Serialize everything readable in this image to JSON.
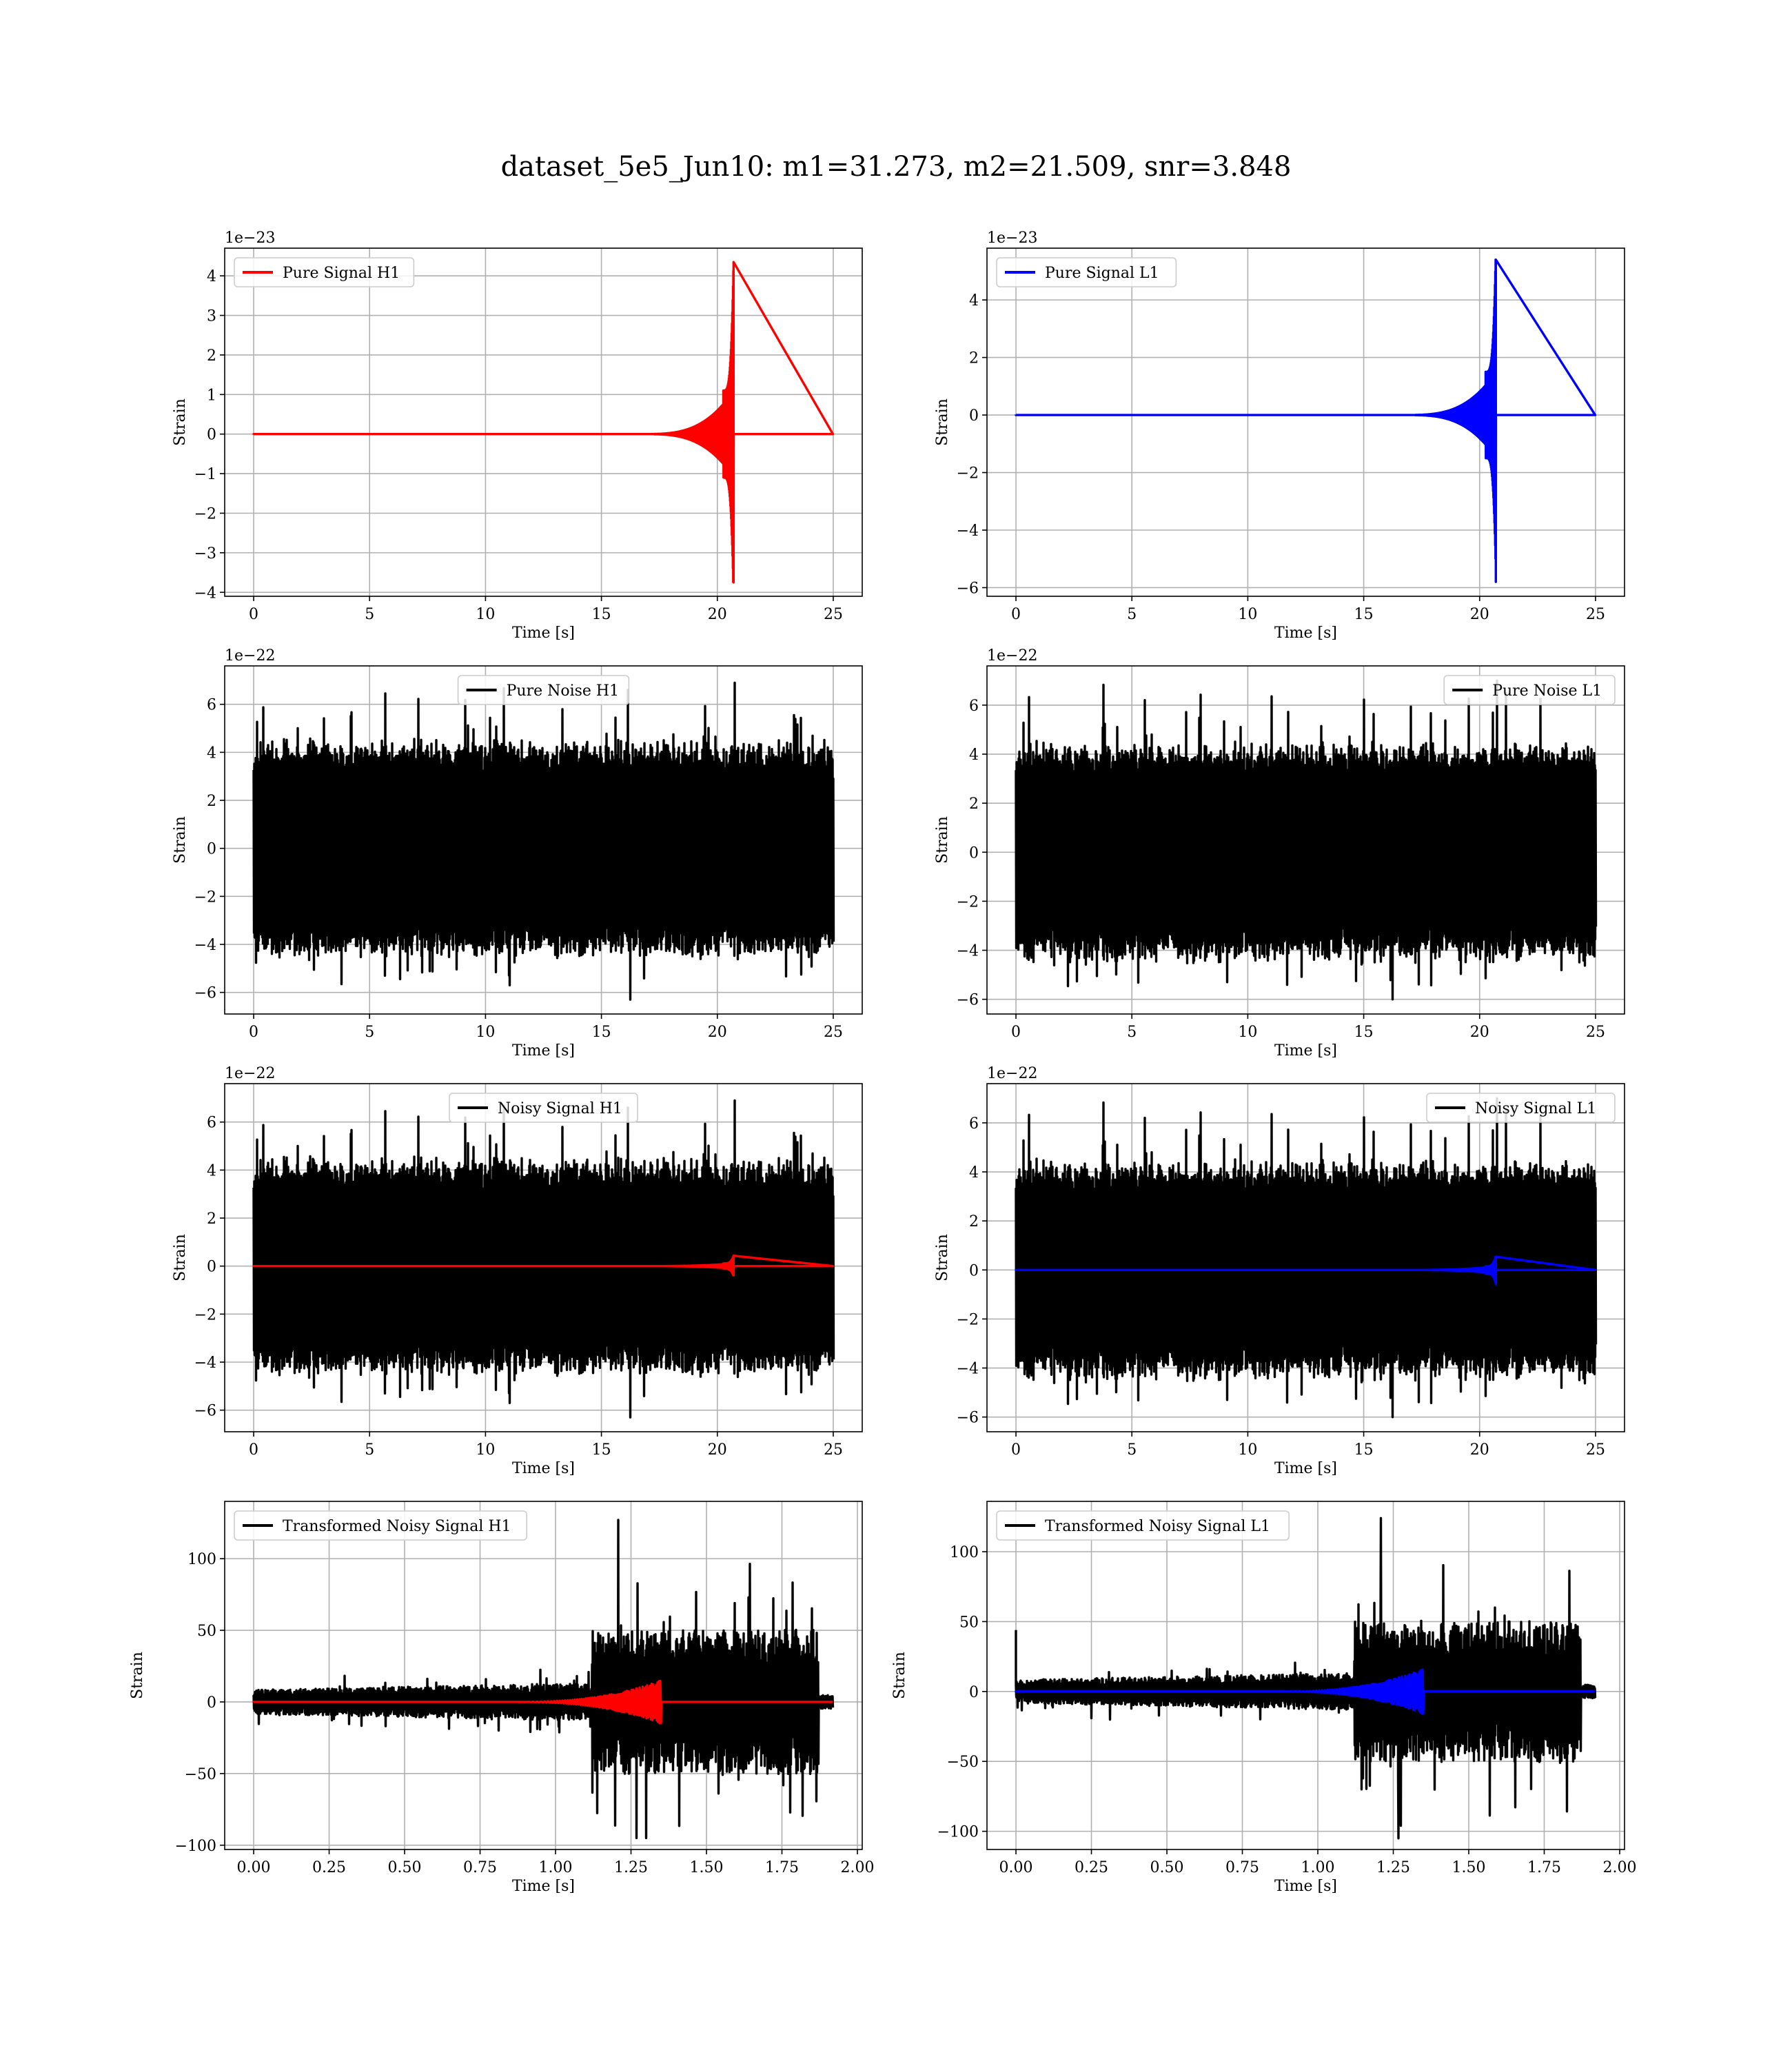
{
  "figure": {
    "title": "dataset_5e5_Jun10: m1=31.273, m2=21.509, snr=3.848"
  },
  "colors": {
    "h1_signal": "#ff0000",
    "l1_signal": "#0000ff",
    "noise": "#000000",
    "grid": "#b0b0b0"
  },
  "chart_data": [
    {
      "id": "pure-signal-h1",
      "type": "line",
      "xlabel": "Time [s]",
      "ylabel": "Strain",
      "offset_text": "1e−23",
      "xlim": [
        -1.25,
        26.25
      ],
      "ylim": [
        -4.1,
        4.7
      ],
      "xticks": [
        0,
        5,
        10,
        15,
        20,
        25
      ],
      "xtick_labels": [
        "0",
        "5",
        "10",
        "15",
        "20",
        "25"
      ],
      "yticks": [
        -4,
        -3,
        -2,
        -1,
        0,
        1,
        2,
        3,
        4
      ],
      "ytick_labels": [
        "−4",
        "−3",
        "−2",
        "−1",
        "0",
        "1",
        "2",
        "3",
        "4"
      ],
      "grid": true,
      "legend_position": "upper left",
      "series": [
        {
          "name": "Pure Signal H1",
          "color": "#ff0000",
          "kind": "chirp",
          "t_start": 0,
          "t_end": 25,
          "t_merger": 20.7,
          "peak_pos": 4.35,
          "peak_neg": -3.75,
          "inspiral_amp": 1.1
        }
      ]
    },
    {
      "id": "pure-signal-l1",
      "type": "line",
      "xlabel": "Time [s]",
      "ylabel": "Strain",
      "offset_text": "1e−23",
      "xlim": [
        -1.25,
        26.25
      ],
      "ylim": [
        -6.3,
        5.8
      ],
      "xticks": [
        0,
        5,
        10,
        15,
        20,
        25
      ],
      "xtick_labels": [
        "0",
        "5",
        "10",
        "15",
        "20",
        "25"
      ],
      "yticks": [
        -6,
        -4,
        -2,
        0,
        2,
        4
      ],
      "ytick_labels": [
        "−6",
        "−4",
        "−2",
        "0",
        "2",
        "4"
      ],
      "grid": true,
      "legend_position": "upper left",
      "series": [
        {
          "name": "Pure Signal L1",
          "color": "#0000ff",
          "kind": "chirp",
          "t_start": 0,
          "t_end": 25,
          "t_merger": 20.7,
          "peak_pos": 5.4,
          "peak_neg": -5.8,
          "inspiral_amp": 1.5
        }
      ]
    },
    {
      "id": "pure-noise-h1",
      "type": "line",
      "xlabel": "Time [s]",
      "ylabel": "Strain",
      "offset_text": "1e−22",
      "xlim": [
        -1.25,
        26.25
      ],
      "ylim": [
        -6.9,
        7.6
      ],
      "xticks": [
        0,
        5,
        10,
        15,
        20,
        25
      ],
      "xtick_labels": [
        "0",
        "5",
        "10",
        "15",
        "20",
        "25"
      ],
      "yticks": [
        -6,
        -4,
        -2,
        0,
        2,
        4,
        6
      ],
      "ytick_labels": [
        "−6",
        "−4",
        "−2",
        "0",
        "2",
        "4",
        "6"
      ],
      "grid": true,
      "legend_position": "upper center",
      "series": [
        {
          "name": "Pure Noise H1",
          "color": "#000000",
          "kind": "noise",
          "t_start": 0,
          "t_end": 25,
          "base_amp": 2.8,
          "max_pos": 6.9,
          "max_neg": -6.3,
          "seed": 11
        }
      ]
    },
    {
      "id": "pure-noise-l1",
      "type": "line",
      "xlabel": "Time [s]",
      "ylabel": "Strain",
      "offset_text": "1e−22",
      "xlim": [
        -1.25,
        26.25
      ],
      "ylim": [
        -6.6,
        7.6
      ],
      "xticks": [
        0,
        5,
        10,
        15,
        20,
        25
      ],
      "xtick_labels": [
        "0",
        "5",
        "10",
        "15",
        "20",
        "25"
      ],
      "yticks": [
        -6,
        -4,
        -2,
        0,
        2,
        4,
        6
      ],
      "ytick_labels": [
        "−6",
        "−4",
        "−2",
        "0",
        "2",
        "4",
        "6"
      ],
      "grid": true,
      "legend_position": "upper right",
      "series": [
        {
          "name": "Pure Noise L1",
          "color": "#000000",
          "kind": "noise",
          "t_start": 0,
          "t_end": 25,
          "base_amp": 2.8,
          "max_pos": 7.0,
          "max_neg": -6.0,
          "seed": 23
        }
      ]
    },
    {
      "id": "noisy-signal-h1",
      "type": "line",
      "xlabel": "Time [s]",
      "ylabel": "Strain",
      "offset_text": "1e−22",
      "xlim": [
        -1.25,
        26.25
      ],
      "ylim": [
        -6.9,
        7.6
      ],
      "xticks": [
        0,
        5,
        10,
        15,
        20,
        25
      ],
      "xtick_labels": [
        "0",
        "5",
        "10",
        "15",
        "20",
        "25"
      ],
      "yticks": [
        -6,
        -4,
        -2,
        0,
        2,
        4,
        6
      ],
      "ytick_labels": [
        "−6",
        "−4",
        "−2",
        "0",
        "2",
        "4",
        "6"
      ],
      "grid": true,
      "legend_position": "upper center",
      "series": [
        {
          "name": "Noisy Signal H1",
          "color": "#000000",
          "kind": "noise",
          "t_start": 0,
          "t_end": 25,
          "base_amp": 2.8,
          "max_pos": 6.9,
          "max_neg": -6.3,
          "seed": 11
        },
        {
          "name": "",
          "color": "#ff0000",
          "kind": "chirp",
          "t_start": 0,
          "t_end": 25,
          "t_merger": 20.7,
          "peak_pos": 0.43,
          "peak_neg": -0.38,
          "inspiral_amp": 0.11
        }
      ]
    },
    {
      "id": "noisy-signal-l1",
      "type": "line",
      "xlabel": "Time [s]",
      "ylabel": "Strain",
      "offset_text": "1e−22",
      "xlim": [
        -1.25,
        26.25
      ],
      "ylim": [
        -6.6,
        7.6
      ],
      "xticks": [
        0,
        5,
        10,
        15,
        20,
        25
      ],
      "xtick_labels": [
        "0",
        "5",
        "10",
        "15",
        "20",
        "25"
      ],
      "yticks": [
        -6,
        -4,
        -2,
        0,
        2,
        4,
        6
      ],
      "ytick_labels": [
        "−6",
        "−4",
        "−2",
        "0",
        "2",
        "4",
        "6"
      ],
      "grid": true,
      "legend_position": "upper right",
      "series": [
        {
          "name": "Noisy Signal L1",
          "color": "#000000",
          "kind": "noise",
          "t_start": 0,
          "t_end": 25,
          "base_amp": 2.8,
          "max_pos": 7.0,
          "max_neg": -6.0,
          "seed": 23
        },
        {
          "name": "",
          "color": "#0000ff",
          "kind": "chirp",
          "t_start": 0,
          "t_end": 25,
          "t_merger": 20.7,
          "peak_pos": 0.54,
          "peak_neg": -0.58,
          "inspiral_amp": 0.15
        }
      ]
    },
    {
      "id": "transformed-h1",
      "type": "line",
      "xlabel": "Time [s]",
      "ylabel": "Strain",
      "offset_text": "",
      "xlim": [
        -0.096,
        2.016
      ],
      "ylim": [
        -103,
        140
      ],
      "xticks": [
        0,
        0.25,
        0.5,
        0.75,
        1.0,
        1.25,
        1.5,
        1.75,
        2.0
      ],
      "xtick_labels": [
        "0.00",
        "0.25",
        "0.50",
        "0.75",
        "1.00",
        "1.25",
        "1.50",
        "1.75",
        "2.00"
      ],
      "yticks": [
        -100,
        -50,
        0,
        50,
        100
      ],
      "ytick_labels": [
        "−100",
        "−50",
        "0",
        "50",
        "100"
      ],
      "grid": true,
      "legend_position": "upper left",
      "series": [
        {
          "name": "Transformed Noisy Signal H1",
          "color": "#000000",
          "kind": "whitened",
          "t_start": 0,
          "t_end": 1.92,
          "t_jump": 1.12,
          "amp_low": 7,
          "amp_high": 42,
          "max_pos": 127,
          "max_neg": -95,
          "seed": 37,
          "end_taper": 1.87
        },
        {
          "name": "",
          "color": "#ff0000",
          "kind": "wchirp",
          "t_start": 0,
          "t_end": 1.92,
          "t_merger": 1.35,
          "peak": 15,
          "t_rise": 0.85
        }
      ]
    },
    {
      "id": "transformed-l1",
      "type": "line",
      "xlabel": "Time [s]",
      "ylabel": "Strain",
      "offset_text": "",
      "xlim": [
        -0.096,
        2.016
      ],
      "ylim": [
        -113,
        136
      ],
      "xticks": [
        0,
        0.25,
        0.5,
        0.75,
        1.0,
        1.25,
        1.5,
        1.75,
        2.0
      ],
      "xtick_labels": [
        "0.00",
        "0.25",
        "0.50",
        "0.75",
        "1.00",
        "1.25",
        "1.50",
        "1.75",
        "2.00"
      ],
      "yticks": [
        -100,
        -50,
        0,
        50,
        100
      ],
      "ytick_labels": [
        "−100",
        "−50",
        "0",
        "50",
        "100"
      ],
      "grid": true,
      "legend_position": "upper left",
      "series": [
        {
          "name": "Transformed Noisy Signal L1",
          "color": "#000000",
          "kind": "whitened",
          "t_start": 0,
          "t_end": 1.92,
          "t_jump": 1.12,
          "amp_low": 7,
          "amp_high": 42,
          "max_pos": 124,
          "max_neg": -105,
          "seed": 53,
          "end_taper": 1.87,
          "start_spike": 44
        },
        {
          "name": "",
          "color": "#0000ff",
          "kind": "wchirp",
          "t_start": 0,
          "t_end": 1.92,
          "t_merger": 1.35,
          "peak": 16,
          "t_rise": 0.85
        }
      ]
    }
  ]
}
